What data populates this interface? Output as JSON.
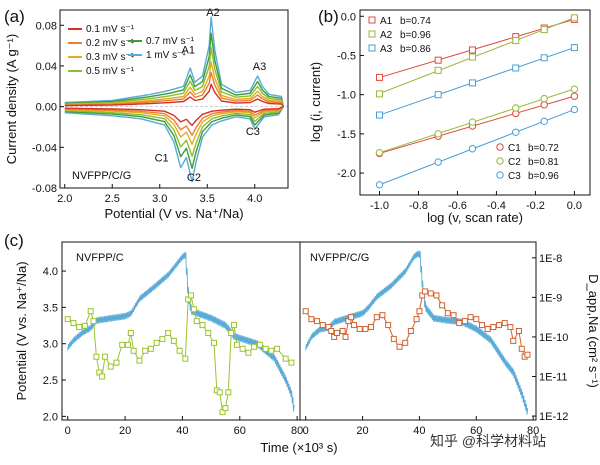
{
  "figure": {
    "watermark": "知乎 @科学材料站"
  },
  "chart_data": [
    {
      "id": "a",
      "type": "line",
      "panel_label": "(a)",
      "xlabel": "Potential (V vs. Na⁺/Na)",
      "ylabel": "Current density (A g⁻¹)",
      "xlim": [
        1.95,
        4.35
      ],
      "ylim": [
        -0.08,
        0.095
      ],
      "xticks": [
        2.0,
        2.5,
        3.0,
        3.5,
        4.0
      ],
      "xtick_labels": [
        "2.0",
        "2.5",
        "3.0",
        "3.5",
        "4.0"
      ],
      "yticks": [
        -0.08,
        -0.04,
        0.0,
        0.04,
        0.08
      ],
      "ytick_labels": [
        "-0.08",
        "-0.04",
        "0.00",
        "0.04",
        "0.08"
      ],
      "sample_label": "NVFPP/C/G",
      "peak_labels": [
        {
          "text": "A1",
          "x": 3.3,
          "y": 0.052
        },
        {
          "text": "A2",
          "x": 3.56,
          "y": 0.089
        },
        {
          "text": "A3",
          "x": 4.05,
          "y": 0.036
        },
        {
          "text": "C1",
          "x": 3.02,
          "y": -0.054
        },
        {
          "text": "C2",
          "x": 3.36,
          "y": -0.073
        },
        {
          "text": "C3",
          "x": 3.98,
          "y": -0.028
        }
      ],
      "legend": [
        {
          "label": "0.1 mV s⁻¹",
          "color": "#d62f27"
        },
        {
          "label": "0.2 mV s⁻¹",
          "color": "#ec7f2d"
        },
        {
          "label": "0.3 mV s⁻¹",
          "color": "#e1ad25"
        },
        {
          "label": "0.5 mV s⁻¹",
          "color": "#8dbd2e"
        },
        {
          "label": "0.7 mV s⁻¹",
          "color": "#3c9c3a"
        },
        {
          "label": "1 mV s⁻¹",
          "color": "#5aaad8"
        }
      ],
      "series": [
        {
          "name": "0.1 mV s⁻¹",
          "color": "#d62f27",
          "scale": 0.25
        },
        {
          "name": "0.2 mV s⁻¹",
          "color": "#ec7f2d",
          "scale": 0.38
        },
        {
          "name": "0.3 mV s⁻¹",
          "color": "#e1ad25",
          "scale": 0.5
        },
        {
          "name": "0.5 mV s⁻¹",
          "color": "#8dbd2e",
          "scale": 0.66
        },
        {
          "name": "0.7 mV s⁻¹",
          "color": "#3c9c3a",
          "scale": 0.82
        },
        {
          "name": "1 mV s⁻¹",
          "color": "#5aaad8",
          "scale": 1.0
        }
      ],
      "reference_curve": {
        "anodic": [
          [
            2.0,
            0.004
          ],
          [
            2.5,
            0.006
          ],
          [
            2.9,
            0.012
          ],
          [
            3.1,
            0.016
          ],
          [
            3.25,
            0.02
          ],
          [
            3.32,
            0.038
          ],
          [
            3.37,
            0.024
          ],
          [
            3.45,
            0.03
          ],
          [
            3.52,
            0.06
          ],
          [
            3.54,
            0.088
          ],
          [
            3.58,
            0.055
          ],
          [
            3.65,
            0.022
          ],
          [
            3.8,
            0.014
          ],
          [
            3.95,
            0.016
          ],
          [
            4.03,
            0.03
          ],
          [
            4.08,
            0.02
          ],
          [
            4.15,
            0.012
          ],
          [
            4.28,
            0.01
          ],
          [
            4.3,
            0.0
          ]
        ],
        "cathodic": [
          [
            4.3,
            0.0
          ],
          [
            4.25,
            -0.008
          ],
          [
            4.1,
            -0.01
          ],
          [
            4.0,
            -0.022
          ],
          [
            3.95,
            -0.012
          ],
          [
            3.8,
            -0.01
          ],
          [
            3.65,
            -0.014
          ],
          [
            3.55,
            -0.018
          ],
          [
            3.45,
            -0.03
          ],
          [
            3.38,
            -0.055
          ],
          [
            3.34,
            -0.074
          ],
          [
            3.28,
            -0.05
          ],
          [
            3.22,
            -0.06
          ],
          [
            3.15,
            -0.035
          ],
          [
            3.05,
            -0.018
          ],
          [
            2.8,
            -0.012
          ],
          [
            2.5,
            -0.009
          ],
          [
            2.0,
            -0.006
          ]
        ]
      }
    },
    {
      "id": "b",
      "type": "scatter",
      "panel_label": "(b)",
      "xlabel": "log (v, scan rate)",
      "ylabel": "log (i, current)",
      "xlim": [
        -1.1,
        0.08
      ],
      "ylim": [
        -2.28,
        0.08
      ],
      "xticks": [
        -1.0,
        -0.8,
        -0.6,
        -0.4,
        -0.2,
        0.0
      ],
      "xtick_labels": [
        "-1.0",
        "-0.8",
        "-0.6",
        "-0.4",
        "-0.2",
        "0.0"
      ],
      "yticks": [
        -2.0,
        -1.5,
        -1.0,
        -0.5,
        0.0
      ],
      "ytick_labels": [
        "-2.0",
        "-1.5",
        "-1.0",
        "-0.5",
        "0.0"
      ],
      "x": [
        -1.0,
        -0.699,
        -0.523,
        -0.301,
        -0.155,
        0.0
      ],
      "series": [
        {
          "name": "A1",
          "b_label": "b=0.74",
          "color": "#e04a3c",
          "values": [
            -0.78,
            -0.56,
            -0.43,
            -0.26,
            -0.15,
            -0.04
          ]
        },
        {
          "name": "A2",
          "b_label": "b=0.96",
          "color": "#9ab83a",
          "values": [
            -0.99,
            -0.69,
            -0.52,
            -0.31,
            -0.17,
            -0.02
          ]
        },
        {
          "name": "A3",
          "b_label": "b=0.86",
          "color": "#4a9ed6",
          "values": [
            -1.26,
            -1.0,
            -0.85,
            -0.66,
            -0.53,
            -0.4
          ]
        },
        {
          "name": "C1",
          "b_label": "b=0.72",
          "color": "#e04a3c",
          "values": [
            -1.75,
            -1.53,
            -1.4,
            -1.24,
            -1.13,
            -1.02
          ]
        },
        {
          "name": "C2",
          "b_label": "b=0.81",
          "color": "#9ab83a",
          "values": [
            -1.74,
            -1.5,
            -1.35,
            -1.17,
            -1.05,
            -0.93
          ]
        },
        {
          "name": "C3",
          "b_label": "b=0.96",
          "color": "#4a9ed6",
          "values": [
            -2.15,
            -1.86,
            -1.69,
            -1.48,
            -1.34,
            -1.19
          ]
        }
      ]
    },
    {
      "id": "c",
      "type": "line",
      "panel_label": "(c)",
      "xlabel": "Time (×10³ s)",
      "ylabel_left": "Potential (V vs. Na⁺/Na)",
      "ylabel_right": "D_app,Na (cm² s⁻¹)",
      "ylim_left": [
        1.95,
        4.4
      ],
      "yticks_left": [
        2.0,
        2.5,
        3.0,
        3.5,
        4.0
      ],
      "ytick_labels_left": [
        "2.0",
        "2.5",
        "3.0",
        "3.5",
        "4.0"
      ],
      "log_d_range": [
        -12.1,
        -7.6
      ],
      "yticks_right_log": [
        -8,
        -9,
        -10,
        -11,
        -12
      ],
      "ytick_labels_right": [
        "1E-8",
        "1E-9",
        "1E-10",
        "1E-11",
        "1E-12"
      ],
      "subpanels": [
        {
          "sample_label": "NVFPP/C",
          "xlim": [
            -2,
            81
          ],
          "xticks": [
            0,
            20,
            40,
            60,
            80
          ],
          "xtick_labels": [
            "0",
            "20",
            "40",
            "60",
            "80"
          ],
          "potential_color": "#5aaad8",
          "potential": [
            [
              0,
              2.95
            ],
            [
              2,
              3.05
            ],
            [
              5,
              3.15
            ],
            [
              8,
              3.22
            ],
            [
              10,
              3.32
            ],
            [
              15,
              3.35
            ],
            [
              20,
              3.38
            ],
            [
              22,
              3.42
            ],
            [
              25,
              3.62
            ],
            [
              30,
              3.78
            ],
            [
              35,
              3.95
            ],
            [
              40,
              4.2
            ],
            [
              41,
              4.22
            ],
            [
              42,
              3.65
            ],
            [
              43,
              3.45
            ],
            [
              50,
              3.35
            ],
            [
              55,
              3.25
            ],
            [
              58,
              3.1
            ],
            [
              62,
              3.05
            ],
            [
              66,
              3.0
            ],
            [
              72,
              2.8
            ],
            [
              76,
              2.5
            ],
            [
              78,
              2.3
            ],
            [
              79,
              2.05
            ]
          ],
          "d_color": "#9ac429",
          "log_d": [
            [
              0,
              -9.55
            ],
            [
              2,
              -9.65
            ],
            [
              4,
              -9.75
            ],
            [
              6,
              -9.72
            ],
            [
              8,
              -9.35
            ],
            [
              9,
              -9.6
            ],
            [
              10,
              -10.5
            ],
            [
              11,
              -10.9
            ],
            [
              12,
              -11.0
            ],
            [
              13,
              -10.5
            ],
            [
              15,
              -10.75
            ],
            [
              17,
              -10.65
            ],
            [
              19,
              -10.2
            ],
            [
              21,
              -10.2
            ],
            [
              22,
              -9.9
            ],
            [
              23,
              -10.35
            ],
            [
              25,
              -10.6
            ],
            [
              27,
              -10.35
            ],
            [
              29,
              -10.3
            ],
            [
              31,
              -10.15
            ],
            [
              33,
              -10.05
            ],
            [
              35,
              -9.9
            ],
            [
              37,
              -10.1
            ],
            [
              39,
              -10.35
            ],
            [
              41,
              -10.55
            ],
            [
              42,
              -9.05
            ],
            [
              43,
              -8.95
            ],
            [
              44,
              -9.3
            ],
            [
              45,
              -9.6
            ],
            [
              47,
              -9.7
            ],
            [
              49,
              -9.9
            ],
            [
              51,
              -10.15
            ],
            [
              52,
              -11.35
            ],
            [
              53,
              -11.4
            ],
            [
              54,
              -11.9
            ],
            [
              55,
              -11.8
            ],
            [
              56,
              -11.4
            ],
            [
              57,
              -9.9
            ],
            [
              58,
              -9.7
            ],
            [
              59,
              -10.2
            ],
            [
              61,
              -10.3
            ],
            [
              63,
              -10.4
            ],
            [
              65,
              -10.25
            ],
            [
              67,
              -10.2
            ],
            [
              69,
              -10.3
            ],
            [
              71,
              -10.35
            ],
            [
              73,
              -10.3
            ],
            [
              76,
              -10.55
            ],
            [
              78,
              -10.65
            ]
          ]
        },
        {
          "sample_label": "NVFPP/C/G",
          "xlim": [
            -2,
            81
          ],
          "xticks": [
            0,
            20,
            40,
            60,
            80
          ],
          "xtick_labels": [
            "0",
            "20",
            "40",
            "60",
            "80"
          ],
          "potential_color": "#5aaad8",
          "potential": [
            [
              0,
              2.95
            ],
            [
              2,
              3.1
            ],
            [
              5,
              3.2
            ],
            [
              8,
              3.22
            ],
            [
              10,
              3.3
            ],
            [
              15,
              3.36
            ],
            [
              20,
              3.42
            ],
            [
              22,
              3.5
            ],
            [
              25,
              3.65
            ],
            [
              30,
              3.8
            ],
            [
              35,
              4.0
            ],
            [
              38,
              4.2
            ],
            [
              40,
              4.25
            ],
            [
              41,
              3.8
            ],
            [
              42,
              3.5
            ],
            [
              45,
              3.35
            ],
            [
              50,
              3.32
            ],
            [
              55,
              3.3
            ],
            [
              60,
              3.2
            ],
            [
              65,
              3.05
            ],
            [
              70,
              2.75
            ],
            [
              73,
              2.6
            ],
            [
              76,
              2.3
            ],
            [
              78,
              2.05
            ]
          ],
          "d_color": "#d4622d",
          "log_d": [
            [
              0,
              -9.35
            ],
            [
              2,
              -9.55
            ],
            [
              4,
              -9.6
            ],
            [
              6,
              -9.7
            ],
            [
              8,
              -9.75
            ],
            [
              9,
              -9.85
            ],
            [
              10,
              -10.0
            ],
            [
              11,
              -9.9
            ],
            [
              13,
              -9.85
            ],
            [
              14,
              -10.0
            ],
            [
              15,
              -9.6
            ],
            [
              16,
              -9.5
            ],
            [
              17,
              -9.7
            ],
            [
              19,
              -9.8
            ],
            [
              21,
              -9.8
            ],
            [
              23,
              -9.75
            ],
            [
              25,
              -9.5
            ],
            [
              27,
              -9.45
            ],
            [
              29,
              -9.7
            ],
            [
              31,
              -10.05
            ],
            [
              33,
              -10.25
            ],
            [
              35,
              -10.15
            ],
            [
              37,
              -9.85
            ],
            [
              39,
              -9.55
            ],
            [
              40,
              -9.35
            ],
            [
              41,
              -8.95
            ],
            [
              42,
              -8.85
            ],
            [
              44,
              -8.9
            ],
            [
              46,
              -8.95
            ],
            [
              48,
              -9.2
            ],
            [
              50,
              -9.4
            ],
            [
              52,
              -9.45
            ],
            [
              54,
              -9.65
            ],
            [
              56,
              -9.6
            ],
            [
              58,
              -9.5
            ],
            [
              60,
              -9.55
            ],
            [
              62,
              -9.7
            ],
            [
              64,
              -9.8
            ],
            [
              66,
              -9.75
            ],
            [
              68,
              -9.7
            ],
            [
              70,
              -9.65
            ],
            [
              72,
              -9.75
            ],
            [
              73,
              -10.1
            ],
            [
              75,
              -9.85
            ],
            [
              76,
              -10.3
            ],
            [
              77,
              -10.5
            ],
            [
              78,
              -10.45
            ]
          ]
        }
      ]
    }
  ]
}
